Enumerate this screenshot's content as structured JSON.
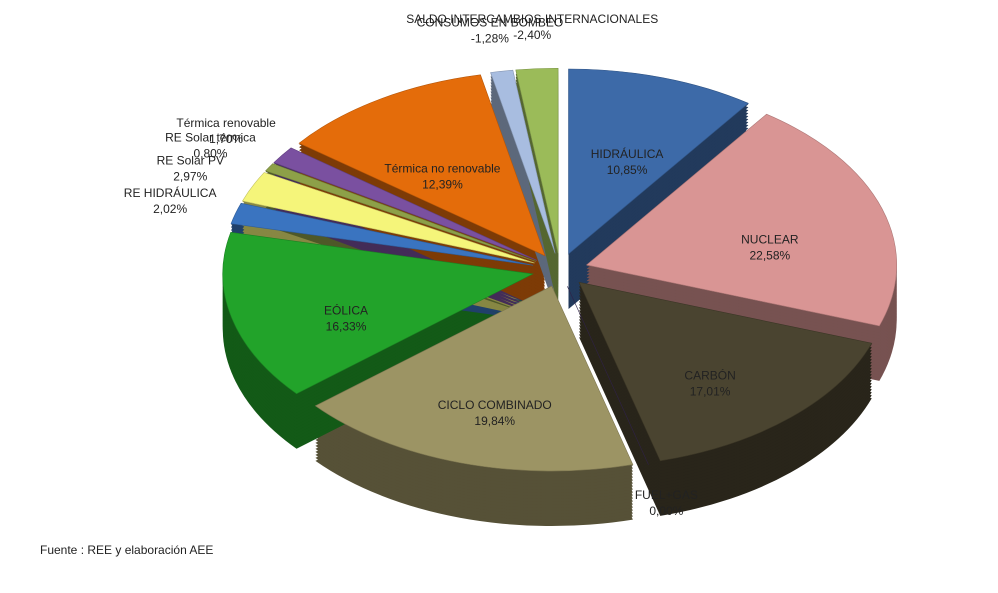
{
  "chart_data": {
    "type": "pie",
    "categories": [
      "HIDRÁULICA",
      "NUCLEAR",
      "CARBÓN",
      "FUEL+GAS",
      "CICLO COMBINADO",
      "EÓLICA",
      "RE HIDRÁULICA",
      "RE Solar PV",
      "RE Solar térmica",
      "Térmica renovable",
      "Térmica no renovable",
      "CONSUMOS EN BOMBEO",
      "SALDO INTERCAMBIOS INTERNACIONALES"
    ],
    "values": [
      10.85,
      22.58,
      17.01,
      0.0,
      19.84,
      16.33,
      2.02,
      2.97,
      0.8,
      1.7,
      12.39,
      -1.28,
      -2.4
    ],
    "value_labels": [
      "10,85%",
      "22,58%",
      "17,01%",
      "0,00%",
      "19,84%",
      "16,33%",
      "2,02%",
      "2,97%",
      "0,80%",
      "1,70%",
      "12,39%",
      "-1,28%",
      "-2,40%"
    ],
    "colors": [
      "#3d6aa8",
      "#d99594",
      "#4a4430",
      "#3b2a5a",
      "#9c9464",
      "#22a32a",
      "#3a74c0",
      "#f5f57a",
      "#8da048",
      "#7a50a0",
      "#e46c0a",
      "#a8bde0",
      "#9bbb59"
    ],
    "annotation": "Fuente : REE y elaboración AEE"
  }
}
